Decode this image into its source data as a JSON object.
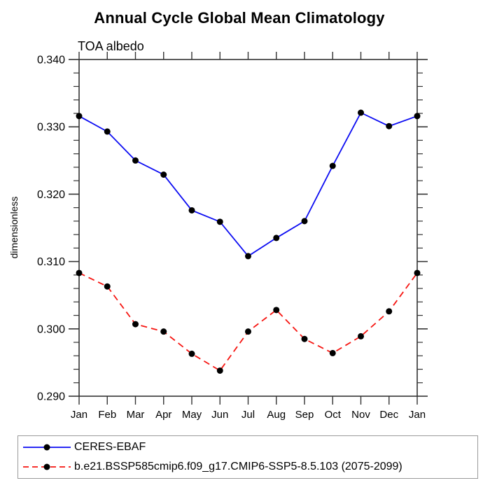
{
  "chart_data": {
    "type": "line",
    "title": "Annual Cycle Global Mean Climatology",
    "subtitle": "TOA albedo",
    "ylabel": "dimensionless",
    "xlabel": "",
    "categories": [
      "Jan",
      "Feb",
      "Mar",
      "Apr",
      "May",
      "Jun",
      "Jul",
      "Aug",
      "Sep",
      "Oct",
      "Nov",
      "Dec",
      "Jan"
    ],
    "ylim": [
      0.29,
      0.34
    ],
    "ytick_step": 0.01,
    "ytick_minor_step": 0.002,
    "ytick_label_format": "0.000",
    "grid": false,
    "legend_position": "bottom",
    "axis_color": "#333333",
    "marker_color": "#000000",
    "series": [
      {
        "name": "CERES-EBAF",
        "color": "#0b0bf2",
        "line_style": "solid",
        "values": [
          0.3316,
          0.3293,
          0.325,
          0.3229,
          0.3176,
          0.3159,
          0.3108,
          0.3135,
          0.316,
          0.3242,
          0.3321,
          0.3301,
          0.3316
        ]
      },
      {
        "name": "b.e21.BSSP585cmip6.f09_g17.CMIP6-SSP5-8.5.103 (2075-2099)",
        "color": "#f61511",
        "line_style": "dashed",
        "values": [
          0.3083,
          0.3063,
          0.3007,
          0.2996,
          0.2963,
          0.2938,
          0.2996,
          0.3028,
          0.2985,
          0.2964,
          0.2989,
          0.3026,
          0.3083
        ]
      }
    ]
  }
}
